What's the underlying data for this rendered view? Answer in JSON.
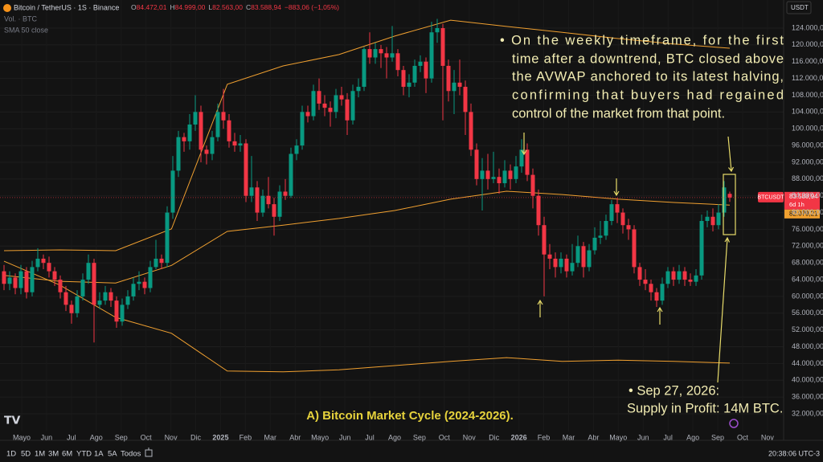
{
  "header": {
    "symbol": "Bitcoin / TetherUS · 1S · Binance",
    "ohlc": [
      {
        "key": "O",
        "value": "84.472,01"
      },
      {
        "key": "H",
        "value": "84.999,00"
      },
      {
        "key": "L",
        "value": "82.563,00"
      },
      {
        "key": "C",
        "value": "83.588,94"
      }
    ],
    "change": "−883,06 (−1,05%)",
    "volume_label": "Vol. · BTC",
    "sma_label": "SMA 50 close",
    "currency": "USDT"
  },
  "toolbar": {
    "ranges": [
      "1D",
      "5D",
      "1M",
      "3M",
      "6M",
      "YTD",
      "1A",
      "5A",
      "Todos"
    ],
    "clock": "20:38:06 UTC-3"
  },
  "annotations": {
    "main": [
      "• On the weekly timeframe, for the first",
      "time after a downtrend, BTC closed above",
      "the AVWAP anchored to its latest halving,",
      "confirming that buyers had regained",
      "control of the market from that point."
    ],
    "note": [
      "• Sep 27, 2026:",
      "Supply in Profit: 14M BTC."
    ],
    "caption": "A) Bitcoin Market Cycle (2024-2026)."
  },
  "chart_data": {
    "type": "candlestick",
    "up_color": "#089981",
    "down_color": "#f23645",
    "band_color": "#f0a030",
    "grid": true,
    "ylim": [
      27784,
      130708
    ],
    "yticks": [
      {
        "value": 124000,
        "label": "124.000,00"
      },
      {
        "value": 120000,
        "label": "120.000,00"
      },
      {
        "value": 116000,
        "label": "116.000,00"
      },
      {
        "value": 112000,
        "label": "112.000,00"
      },
      {
        "value": 108000,
        "label": "108.000,00"
      },
      {
        "value": 104000,
        "label": "104.000,00"
      },
      {
        "value": 100000,
        "label": "100.000,00"
      },
      {
        "value": 96000,
        "label": "96.000,00"
      },
      {
        "value": 92000,
        "label": "92.000,00"
      },
      {
        "value": 88000,
        "label": "88.000,00"
      },
      {
        "value": 84000,
        "label": "84.000,00"
      },
      {
        "value": 80000,
        "label": "80.000,00"
      },
      {
        "value": 76000,
        "label": "76.000,00"
      },
      {
        "value": 72000,
        "label": "72.000,00"
      },
      {
        "value": 68000,
        "label": "68.000,00"
      },
      {
        "value": 64000,
        "label": "64.000,00"
      },
      {
        "value": 60000,
        "label": "60.000,00"
      },
      {
        "value": 56000,
        "label": "56.000,00"
      },
      {
        "value": 52000,
        "label": "52.000,00"
      },
      {
        "value": 48000,
        "label": "48.000,00"
      },
      {
        "value": 44000,
        "label": "44.000,00"
      },
      {
        "value": 40000,
        "label": "40.000,00"
      },
      {
        "value": 36000,
        "label": "36.000,00"
      },
      {
        "value": 32000,
        "label": "32.000,00"
      }
    ],
    "x_labels": [
      "Mayo",
      "Jun",
      "Jul",
      "Ago",
      "Sep",
      "Oct",
      "Nov",
      "Dic",
      "2025",
      "Feb",
      "Mar",
      "Abr",
      "Mayo",
      "Jun",
      "Jul",
      "Ago",
      "Sep",
      "Oct",
      "Nov",
      "Dic",
      "2026",
      "Feb",
      "Mar",
      "Abr",
      "Mayo",
      "Jun",
      "Jul",
      "Ago",
      "Sep",
      "Oct",
      "Nov"
    ],
    "ohlc": [
      [
        66000,
        67500,
        61500,
        63000
      ],
      [
        63000,
        66000,
        61500,
        64500
      ],
      [
        64500,
        65500,
        60500,
        62000
      ],
      [
        62000,
        67500,
        60500,
        66000
      ],
      [
        66000,
        67000,
        59500,
        61000
      ],
      [
        61000,
        68500,
        60000,
        67000
      ],
      [
        67000,
        71500,
        66000,
        69000
      ],
      [
        69000,
        70000,
        66500,
        68000
      ],
      [
        68000,
        69500,
        64500,
        66000
      ],
      [
        66000,
        67000,
        62500,
        64000
      ],
      [
        64000,
        65000,
        59500,
        61000
      ],
      [
        61000,
        62500,
        56500,
        58000
      ],
      [
        58000,
        59000,
        53500,
        56000
      ],
      [
        56000,
        61500,
        55000,
        60000
      ],
      [
        60000,
        65500,
        59000,
        64000
      ],
      [
        64000,
        70000,
        63000,
        68000
      ],
      [
        68000,
        69000,
        49000,
        58000
      ],
      [
        58000,
        61000,
        57000,
        59000
      ],
      [
        59000,
        62500,
        58000,
        61000
      ],
      [
        61000,
        62000,
        57500,
        59000
      ],
      [
        59000,
        60000,
        52500,
        54000
      ],
      [
        54000,
        59500,
        53000,
        58000
      ],
      [
        58000,
        61500,
        57000,
        60000
      ],
      [
        60000,
        64500,
        59000,
        63000
      ],
      [
        63000,
        66000,
        61500,
        63500
      ],
      [
        63500,
        64500,
        60500,
        62000
      ],
      [
        62000,
        68500,
        61000,
        67000
      ],
      [
        67000,
        73500,
        66500,
        69000
      ],
      [
        69000,
        70000,
        66500,
        68000
      ],
      [
        68000,
        81500,
        67000,
        80000
      ],
      [
        80000,
        93500,
        78500,
        90000
      ],
      [
        90000,
        99500,
        88500,
        98000
      ],
      [
        98000,
        99000,
        94500,
        97000
      ],
      [
        97000,
        103500,
        95000,
        101000
      ],
      [
        101000,
        108000,
        99500,
        104000
      ],
      [
        104000,
        105500,
        92000,
        95000
      ],
      [
        95000,
        96000,
        91500,
        94000
      ],
      [
        94000,
        99500,
        92500,
        98000
      ],
      [
        98000,
        106000,
        97000,
        104000
      ],
      [
        104000,
        109500,
        100000,
        102000
      ],
      [
        102000,
        103500,
        95500,
        97000
      ],
      [
        97000,
        99000,
        94500,
        96000
      ],
      [
        96000,
        98500,
        94500,
        96500
      ],
      [
        96500,
        97500,
        82500,
        84000
      ],
      [
        84000,
        93500,
        82500,
        86000
      ],
      [
        86000,
        87500,
        78000,
        80000
      ],
      [
        80000,
        85500,
        79000,
        84000
      ],
      [
        84000,
        88500,
        81000,
        82000
      ],
      [
        82000,
        83500,
        74500,
        79000
      ],
      [
        79000,
        86500,
        78000,
        85000
      ],
      [
        85000,
        88000,
        83000,
        84000
      ],
      [
        84000,
        95500,
        83500,
        94000
      ],
      [
        94000,
        97500,
        92500,
        96000
      ],
      [
        96000,
        105500,
        95000,
        104000
      ],
      [
        104000,
        105500,
        101500,
        103000
      ],
      [
        103000,
        110500,
        102000,
        109000
      ],
      [
        109000,
        112000,
        104500,
        106000
      ],
      [
        106000,
        108000,
        103000,
        105000
      ],
      [
        105000,
        106500,
        100500,
        104000
      ],
      [
        104000,
        109500,
        102500,
        108000
      ],
      [
        108000,
        110000,
        105500,
        107000
      ],
      [
        107000,
        108500,
        98500,
        102000
      ],
      [
        102000,
        110500,
        101000,
        109000
      ],
      [
        109000,
        112000,
        107500,
        110000
      ],
      [
        110000,
        119500,
        109000,
        119000
      ],
      [
        119000,
        123000,
        115500,
        117000
      ],
      [
        117000,
        120500,
        115500,
        119000
      ],
      [
        119000,
        120000,
        114500,
        118000
      ],
      [
        118000,
        119500,
        112000,
        117000
      ],
      [
        117000,
        124500,
        116000,
        118000
      ],
      [
        118000,
        119000,
        112500,
        114000
      ],
      [
        114000,
        115000,
        108000,
        110000
      ],
      [
        110000,
        113000,
        107500,
        111000
      ],
      [
        111000,
        116500,
        110000,
        115000
      ],
      [
        115000,
        117500,
        113500,
        116000
      ],
      [
        116000,
        117000,
        108500,
        112000
      ],
      [
        112000,
        125500,
        111000,
        123000
      ],
      [
        123000,
        126200,
        120500,
        124000
      ],
      [
        124000,
        125000,
        102000,
        115000
      ],
      [
        115000,
        116500,
        106500,
        109000
      ],
      [
        109000,
        114000,
        103500,
        111000
      ],
      [
        111000,
        116500,
        108000,
        110000
      ],
      [
        110000,
        111500,
        98500,
        104000
      ],
      [
        104000,
        106000,
        93500,
        95000
      ],
      [
        95000,
        96500,
        86500,
        88000
      ],
      [
        88000,
        93000,
        80500,
        90000
      ],
      [
        90000,
        94000,
        85500,
        88000
      ],
      [
        88000,
        94500,
        87000,
        88500
      ],
      [
        88500,
        90500,
        84500,
        87000
      ],
      [
        87000,
        92500,
        86000,
        90000
      ],
      [
        90000,
        91500,
        85500,
        88000
      ],
      [
        88000,
        93500,
        87000,
        91000
      ],
      [
        91000,
        97500,
        89500,
        95000
      ],
      [
        95000,
        96500,
        87500,
        89000
      ],
      [
        89000,
        90500,
        81000,
        84000
      ],
      [
        84000,
        85500,
        74500,
        77000
      ],
      [
        77000,
        79000,
        60000,
        70000
      ],
      [
        70000,
        72500,
        66500,
        69000
      ],
      [
        69000,
        70500,
        64500,
        67000
      ],
      [
        67000,
        70500,
        65500,
        69000
      ],
      [
        69000,
        70000,
        64500,
        66000
      ],
      [
        66000,
        72500,
        65000,
        68000
      ],
      [
        68000,
        74500,
        67000,
        72000
      ],
      [
        72000,
        73000,
        64500,
        67000
      ],
      [
        67000,
        72500,
        66000,
        71000
      ],
      [
        71000,
        76500,
        70000,
        74000
      ],
      [
        74000,
        78000,
        72500,
        74500
      ],
      [
        74500,
        79500,
        73500,
        78000
      ],
      [
        78000,
        83000,
        77000,
        82000
      ],
      [
        82000,
        83500,
        77500,
        80000
      ],
      [
        80000,
        81000,
        75000,
        77000
      ],
      [
        77000,
        78500,
        73500,
        76000
      ],
      [
        76000,
        77000,
        65500,
        67000
      ],
      [
        67000,
        68000,
        62500,
        64000
      ],
      [
        64000,
        66500,
        61500,
        63000
      ],
      [
        63000,
        64000,
        59000,
        61000
      ],
      [
        61000,
        62000,
        57500,
        59000
      ],
      [
        59000,
        64500,
        58000,
        63000
      ],
      [
        63000,
        67000,
        62000,
        66000
      ],
      [
        66000,
        67000,
        62500,
        64000
      ],
      [
        64000,
        67500,
        63000,
        66000
      ],
      [
        66000,
        67000,
        62500,
        64000
      ],
      [
        64000,
        65500,
        62500,
        63500
      ],
      [
        63500,
        66500,
        62500,
        65000
      ],
      [
        65000,
        79500,
        64000,
        78000
      ],
      [
        78000,
        80500,
        76500,
        79000
      ],
      [
        79000,
        81000,
        75500,
        77000
      ],
      [
        77000,
        82000,
        76000,
        80000
      ],
      [
        80000,
        87500,
        79000,
        86000
      ],
      [
        84472.01,
        84999,
        82563,
        83588.94
      ]
    ],
    "bands": [
      {
        "values": [
          70900,
          71100,
          70900,
          76100,
          110600,
          115000,
          117700,
          122100,
          125900,
          124400,
          123000,
          121500,
          120200,
          119200
        ]
      },
      {
        "values": [
          65000,
          63600,
          63200,
          67400,
          75500,
          77000,
          78600,
          80500,
          83200,
          85100,
          84300,
          83200,
          82400,
          81800
        ]
      },
      {
        "values": [
          68400,
          62700,
          55000,
          51200,
          42200,
          42000,
          42500,
          43500,
          44500,
          45400,
          44500,
          44800,
          44500,
          44100
        ]
      }
    ],
    "price_tag": {
      "name": "BTCUSDT",
      "value": 83588.94,
      "label": "83.588,94",
      "countdown": "6d 1h"
    },
    "avwap_tag": {
      "value": 82079.21,
      "label": "82.079,21"
    }
  }
}
